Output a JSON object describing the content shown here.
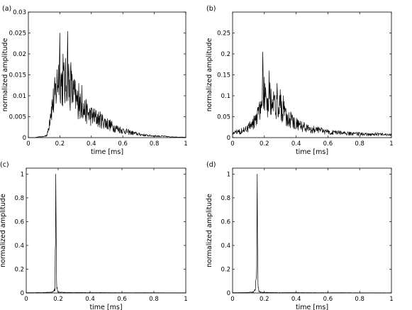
{
  "chart_data": [
    {
      "type": "line",
      "panel_label": "(a)",
      "xlabel": "time [ms]",
      "ylabel": "normalized amplitude",
      "xlim": [
        0,
        1
      ],
      "ylim": [
        0,
        0.03
      ],
      "xticks": [
        0,
        0.2,
        0.4,
        0.6,
        0.8,
        1
      ],
      "xtick_labels": [
        "0",
        "0.2",
        "0.4",
        "0.6",
        "0.8",
        "1"
      ],
      "yticks": [
        0,
        0.005,
        0.01,
        0.015,
        0.02,
        0.025,
        0.03
      ],
      "ytick_labels": [
        "0",
        "0.005",
        "0.01",
        "0.015",
        "0.02",
        "0.025",
        "0.03"
      ],
      "grid": false,
      "series": [
        {
          "color": "#000000",
          "x": [
            0,
            0.04,
            0.06,
            0.08,
            0.1,
            0.12,
            0.13,
            0.14,
            0.15,
            0.16,
            0.17,
            0.18,
            0.19,
            0.2,
            0.21,
            0.22,
            0.23,
            0.24,
            0.25,
            0.26,
            0.27,
            0.28,
            0.29,
            0.3,
            0.31,
            0.32,
            0.33,
            0.34,
            0.35,
            0.37,
            0.39,
            0.41,
            0.43,
            0.45,
            0.47,
            0.5,
            0.55,
            0.6,
            0.65,
            0.7,
            0.75,
            0.8,
            0.85,
            0.9,
            0.95,
            1.0
          ],
          "y": [
            0,
            0,
            0.0002,
            0.0003,
            0.0004,
            0.001,
            0.004,
            0.009,
            0.011,
            0.013,
            0.015,
            0.018,
            0.022,
            0.025,
            0.019,
            0.02,
            0.018,
            0.02,
            0.0254,
            0.017,
            0.018,
            0.016,
            0.015,
            0.014,
            0.012,
            0.013,
            0.011,
            0.0125,
            0.01,
            0.009,
            0.008,
            0.0075,
            0.007,
            0.0065,
            0.006,
            0.005,
            0.0035,
            0.0025,
            0.0018,
            0.0012,
            0.0008,
            0.0006,
            0.0005,
            0.0003,
            0.0002,
            0.0001
          ]
        }
      ]
    },
    {
      "type": "line",
      "panel_label": "(b)",
      "xlabel": "time [ms]",
      "ylabel": "normalized amplitude",
      "xlim": [
        0,
        1
      ],
      "ylim": [
        0,
        0.3
      ],
      "xticks": [
        0,
        0.2,
        0.4,
        0.6,
        0.8,
        1
      ],
      "xtick_labels": [
        "0",
        "0.2",
        "0.4",
        "0.6",
        "0.8",
        "1"
      ],
      "yticks": [
        0,
        0.05,
        0.1,
        0.15,
        0.2,
        0.25
      ],
      "ytick_labels": [
        "0",
        "0.05",
        "0.1",
        "0.15",
        "0.2",
        "0.25"
      ],
      "grid": false,
      "series": [
        {
          "color": "#000000",
          "x": [
            0,
            0.02,
            0.04,
            0.06,
            0.08,
            0.1,
            0.12,
            0.14,
            0.16,
            0.18,
            0.19,
            0.2,
            0.21,
            0.22,
            0.23,
            0.24,
            0.25,
            0.26,
            0.27,
            0.28,
            0.29,
            0.3,
            0.31,
            0.32,
            0.33,
            0.35,
            0.37,
            0.4,
            0.43,
            0.46,
            0.5,
            0.55,
            0.6,
            0.65,
            0.7,
            0.75,
            0.8,
            0.85,
            0.9,
            0.95,
            1.0
          ],
          "y": [
            0.015,
            0.02,
            0.022,
            0.025,
            0.028,
            0.035,
            0.045,
            0.06,
            0.08,
            0.12,
            0.205,
            0.15,
            0.14,
            0.12,
            0.16,
            0.14,
            0.12,
            0.11,
            0.1,
            0.13,
            0.1,
            0.115,
            0.09,
            0.1,
            0.08,
            0.07,
            0.06,
            0.05,
            0.04,
            0.035,
            0.03,
            0.025,
            0.02,
            0.018,
            0.015,
            0.014,
            0.013,
            0.012,
            0.012,
            0.011,
            0.01
          ]
        }
      ]
    },
    {
      "type": "line",
      "panel_label": "(c)",
      "xlabel": "time [ms]",
      "ylabel": "normalized amplitude",
      "xlim": [
        0,
        1
      ],
      "ylim": [
        0,
        1.05
      ],
      "xticks": [
        0,
        0.2,
        0.4,
        0.6,
        0.8,
        1
      ],
      "xtick_labels": [
        "0",
        "0.2",
        "0.4",
        "0.6",
        "0.8",
        "1"
      ],
      "yticks": [
        0,
        0.2,
        0.4,
        0.6,
        0.8,
        1
      ],
      "ytick_labels": [
        "0",
        "0.2",
        "0.4",
        "0.6",
        "0.8",
        "1"
      ],
      "grid": false,
      "series": [
        {
          "color": "#000000",
          "x": [
            0,
            0.05,
            0.1,
            0.15,
            0.17,
            0.18,
            0.185,
            0.19,
            0.195,
            0.2,
            0.21,
            0.25,
            0.3,
            0.4,
            0.5,
            0.6,
            0.7,
            0.8,
            0.9,
            1.0
          ],
          "y": [
            0.003,
            0.004,
            0.005,
            0.008,
            0.012,
            0.05,
            1.0,
            0.12,
            0.03,
            0.012,
            0.008,
            0.006,
            0.005,
            0.004,
            0.004,
            0.003,
            0.003,
            0.003,
            0.002,
            0.002
          ]
        }
      ]
    },
    {
      "type": "line",
      "panel_label": "(d)",
      "xlabel": "time [ms]",
      "ylabel": "normalized amplitude",
      "xlim": [
        0,
        1
      ],
      "ylim": [
        0,
        1.05
      ],
      "xticks": [
        0,
        0.2,
        0.4,
        0.6,
        0.8,
        1
      ],
      "xtick_labels": [
        "0",
        "0.2",
        "0.4",
        "0.6",
        "0.8",
        "1"
      ],
      "yticks": [
        0,
        0.2,
        0.4,
        0.6,
        0.8,
        1
      ],
      "ytick_labels": [
        "0",
        "0.2",
        "0.4",
        "0.6",
        "0.8",
        "1"
      ],
      "grid": false,
      "series": [
        {
          "color": "#000000",
          "x": [
            0,
            0.05,
            0.1,
            0.13,
            0.14,
            0.15,
            0.155,
            0.16,
            0.165,
            0.17,
            0.18,
            0.22,
            0.3,
            0.4,
            0.5,
            0.6,
            0.7,
            0.8,
            0.9,
            1.0
          ],
          "y": [
            0.003,
            0.004,
            0.006,
            0.012,
            0.03,
            0.15,
            1.0,
            0.14,
            0.03,
            0.012,
            0.008,
            0.006,
            0.004,
            0.004,
            0.003,
            0.003,
            0.003,
            0.002,
            0.002,
            0.002
          ]
        }
      ]
    }
  ]
}
